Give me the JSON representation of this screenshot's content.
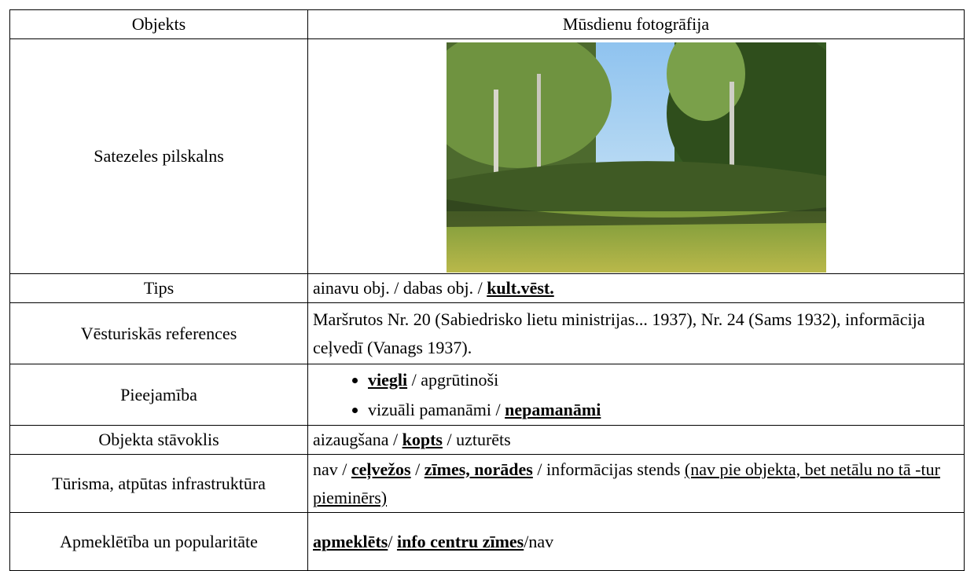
{
  "table": {
    "header": [
      "Objekts",
      "Mūsdienu fotogrāfija"
    ],
    "rows": [
      {
        "label": "Satezeles pilskalns"
      },
      {
        "label": "Tips",
        "value": [
          "ainavu obj. / dabas obj. / ",
          {
            "text": "kult.vēst.",
            "style": "bold-underline"
          }
        ]
      },
      {
        "label": "Vēsturiskās references",
        "value": [
          "Maršrutos Nr. 20 (Sabiedrisko lietu ministrijas... 1937), Nr. 24 (Sams 1932), informācija ceļvedī (Vanags 1937)."
        ]
      },
      {
        "label": "Pieejamība",
        "bullets": [
          [
            {
              "text": "viegli",
              "style": "bold-underline"
            },
            " / apgrūtinoši"
          ],
          [
            "vizuāli pamanāmi / ",
            {
              "text": "nepamanāmi",
              "style": "bold-underline"
            }
          ]
        ]
      },
      {
        "label": "Objekta stāvoklis",
        "value": [
          "aizaugšana / ",
          {
            "text": "kopts",
            "style": "bold-underline"
          },
          " / uzturēts"
        ]
      },
      {
        "label": "Tūrisma, atpūtas infrastruktūra",
        "value": [
          "nav / ",
          {
            "text": "ceļvežos",
            "style": "bold-underline"
          },
          " / ",
          {
            "text": "zīmes, norādes",
            "style": "bold-underline"
          },
          " / informācijas stends ",
          {
            "text": "(nav pie objekta, bet netālu no tā -tur pieminērs)",
            "style": "underline"
          }
        ]
      },
      {
        "label": "Apmeklētība un popularitāte",
        "value": [
          {
            "text": "apmeklēts",
            "style": "bold-underline"
          },
          "/ ",
          {
            "text": "info centru zīmes",
            "style": "bold-underline"
          },
          "/nav"
        ]
      }
    ]
  }
}
